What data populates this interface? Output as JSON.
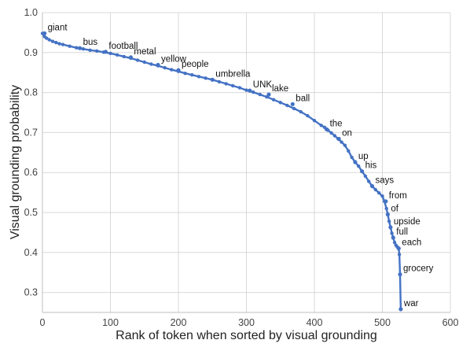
{
  "chart_data": {
    "type": "line",
    "title": "",
    "xlabel": "Rank of token when sorted by visual grounding",
    "ylabel": "Visual grounding probability",
    "xlim": [
      0,
      600
    ],
    "ylim": [
      0.25,
      1.0
    ],
    "xticks": [
      0,
      100,
      200,
      300,
      400,
      500,
      600
    ],
    "yticks": [
      0.3,
      0.4,
      0.5,
      0.6,
      0.7,
      0.8,
      0.9,
      1.0
    ],
    "xtick_labels": [
      "0",
      "100",
      "200",
      "300",
      "400",
      "500",
      "600"
    ],
    "ytick_labels": [
      "0.3",
      "0.4",
      "0.5",
      "0.6",
      "0.7",
      "0.8",
      "0.9",
      "1.0"
    ],
    "grid": true,
    "legend": "none",
    "color": "#4472c4",
    "series": [
      {
        "x": [
          0,
          3,
          6,
          10,
          15,
          20,
          25,
          30,
          40,
          50,
          60,
          70,
          80,
          90,
          100,
          110,
          120,
          130,
          140,
          150,
          160,
          170,
          180,
          190,
          200,
          210,
          220,
          230,
          240,
          250,
          260,
          270,
          280,
          290,
          300,
          310,
          320,
          330,
          340,
          350,
          360,
          370,
          380,
          390,
          400,
          410,
          415,
          420,
          425,
          430,
          435,
          440,
          445,
          450,
          455,
          460,
          465,
          470,
          475,
          480,
          485,
          490,
          495,
          500,
          503,
          506,
          508,
          510,
          512,
          514,
          516,
          518,
          520,
          522,
          524,
          525,
          526,
          527
        ],
        "y": [
          0.948,
          0.94,
          0.936,
          0.932,
          0.928,
          0.925,
          0.922,
          0.92,
          0.916,
          0.912,
          0.909,
          0.906,
          0.904,
          0.901,
          0.898,
          0.894,
          0.89,
          0.886,
          0.881,
          0.876,
          0.871,
          0.867,
          0.862,
          0.857,
          0.853,
          0.848,
          0.844,
          0.84,
          0.836,
          0.832,
          0.827,
          0.822,
          0.817,
          0.812,
          0.806,
          0.801,
          0.795,
          0.789,
          0.782,
          0.775,
          0.768,
          0.76,
          0.752,
          0.742,
          0.73,
          0.718,
          0.713,
          0.706,
          0.699,
          0.692,
          0.684,
          0.676,
          0.668,
          0.654,
          0.638,
          0.626,
          0.616,
          0.603,
          0.591,
          0.578,
          0.566,
          0.557,
          0.549,
          0.541,
          0.528,
          0.51,
          0.495,
          0.478,
          0.463,
          0.448,
          0.437,
          0.425,
          0.418,
          0.414,
          0.41,
          0.395,
          0.345,
          0.258
        ]
      }
    ],
    "annotations": [
      {
        "text": "giant",
        "x": 3,
        "y": 0.948
      },
      {
        "text": "bus",
        "x": 55,
        "y": 0.911
      },
      {
        "text": "football",
        "x": 93,
        "y": 0.902
      },
      {
        "text": "metal",
        "x": 130,
        "y": 0.888
      },
      {
        "text": "yellow",
        "x": 170,
        "y": 0.869
      },
      {
        "text": "people",
        "x": 200,
        "y": 0.856
      },
      {
        "text": "umbrella",
        "x": 250,
        "y": 0.832
      },
      {
        "text": "UNK",
        "x": 305,
        "y": 0.805
      },
      {
        "text": "lake",
        "x": 333,
        "y": 0.795
      },
      {
        "text": "ball",
        "x": 368,
        "y": 0.771
      },
      {
        "text": "the",
        "x": 418,
        "y": 0.708
      },
      {
        "text": "on",
        "x": 436,
        "y": 0.684
      },
      {
        "text": "up",
        "x": 460,
        "y": 0.626
      },
      {
        "text": "his",
        "x": 470,
        "y": 0.603
      },
      {
        "text": "says",
        "x": 485,
        "y": 0.566
      },
      {
        "text": "from",
        "x": 505,
        "y": 0.528
      },
      {
        "text": "of",
        "x": 508,
        "y": 0.495
      },
      {
        "text": "upside",
        "x": 512,
        "y": 0.463
      },
      {
        "text": "full",
        "x": 516,
        "y": 0.437
      },
      {
        "text": "each",
        "x": 524,
        "y": 0.41
      },
      {
        "text": "grocery",
        "x": 526,
        "y": 0.345
      },
      {
        "text": "war",
        "x": 527,
        "y": 0.258
      }
    ]
  }
}
